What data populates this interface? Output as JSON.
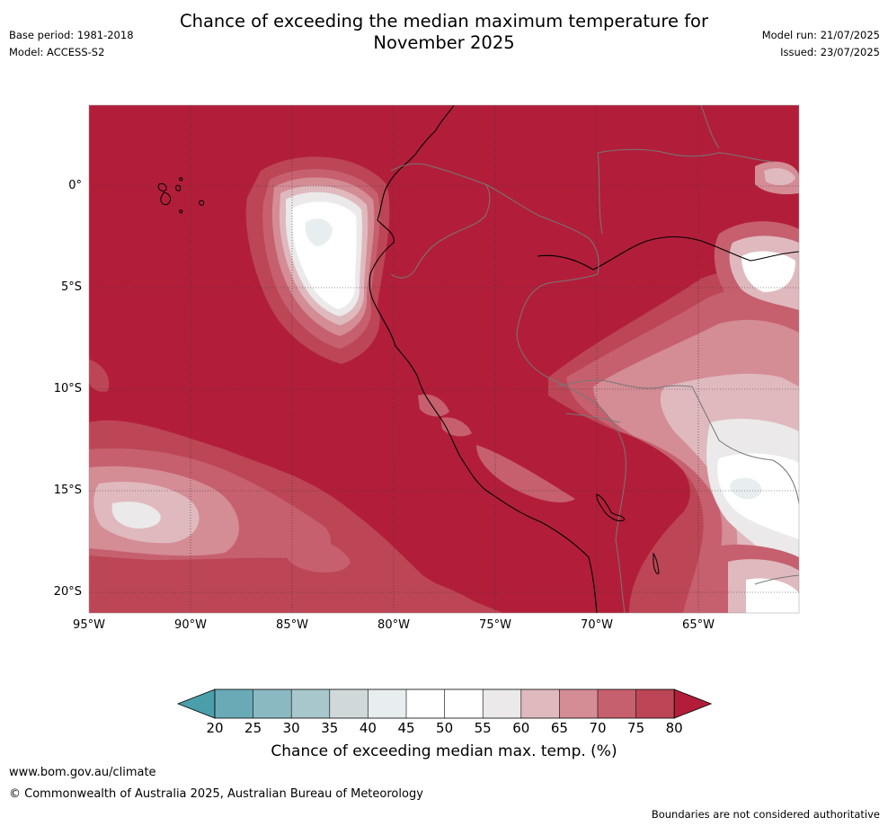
{
  "header": {
    "title_line1": "Chance of exceeding the median maximum temperature for",
    "title_line2": "November 2025",
    "base_period": "Base period: 1981-2018",
    "model": "Model: ACCESS-S2",
    "model_run": "Model run: 21/07/2025",
    "issued": "Issued: 23/07/2025"
  },
  "map": {
    "lat_ticks": [
      "0°",
      "5°S",
      "10°S",
      "15°S",
      "20°S"
    ],
    "lon_ticks": [
      "95°W",
      "90°W",
      "85°W",
      "80°W",
      "75°W",
      "70°W",
      "65°W"
    ],
    "background_color": "#b21e3a"
  },
  "colorbar": {
    "labels": [
      "20",
      "25",
      "30",
      "35",
      "40",
      "45",
      "50",
      "55",
      "60",
      "65",
      "70",
      "75",
      "80"
    ],
    "colors": [
      "#69aab6",
      "#8bb9c2",
      "#a8c7cc",
      "#d0d8da",
      "#e8eef0",
      "#ffffff",
      "#ffffff",
      "#ebe9e9",
      "#dfb9be",
      "#d48c95",
      "#c6606e",
      "#bc4655"
    ],
    "low_arrow_color": "#4a9fab",
    "high_arrow_color": "#b21e3a",
    "title": "Chance of exceeding median max. temp. (%)"
  },
  "footer": {
    "website": "www.bom.gov.au/climate",
    "copyright": "© Commonwealth of Australia 2025, Australian Bureau of Meteorology",
    "disclaimer": "Boundaries are not considered authoritative"
  }
}
